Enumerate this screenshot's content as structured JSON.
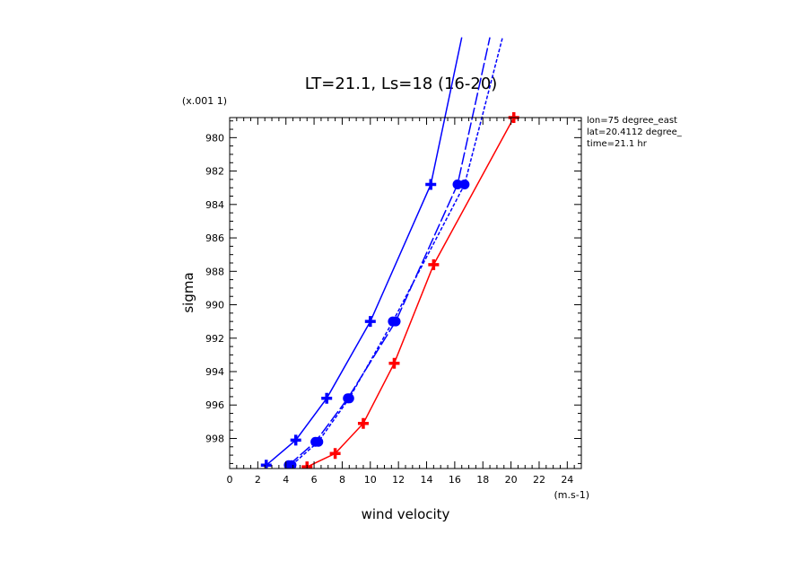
{
  "chart_data": {
    "type": "line",
    "title": "LT=21.1, Ls=18 (16-20)",
    "xlabel": "wind velocity",
    "ylabel": "sigma",
    "x_units": "(m.s-1)",
    "y_scale_label": "(x.001 1)",
    "xlim": [
      0,
      25
    ],
    "ylim": [
      999.8,
      978.8
    ],
    "x_ticks": [
      0,
      2,
      4,
      6,
      8,
      10,
      12,
      14,
      16,
      18,
      20,
      22,
      24
    ],
    "y_ticks": [
      980,
      982,
      984,
      986,
      988,
      990,
      992,
      994,
      996,
      998
    ],
    "grid": false,
    "series": [
      {
        "color": "#0000ff",
        "dash": "solid",
        "marker": "cross",
        "points": [
          [
            2.6,
            999.6
          ],
          [
            4.7,
            998.1
          ],
          [
            6.9,
            995.6
          ],
          [
            10.0,
            991.0
          ],
          [
            14.3,
            982.8
          ],
          [
            16.5,
            974.0
          ]
        ]
      },
      {
        "color": "#0000ff",
        "dash": "long-dash",
        "marker": "circle",
        "points": [
          [
            4.2,
            999.6
          ],
          [
            6.1,
            998.2
          ],
          [
            8.4,
            995.6
          ],
          [
            11.8,
            991.0
          ],
          [
            16.2,
            982.8
          ],
          [
            18.5,
            974.0
          ]
        ]
      },
      {
        "color": "#0000ff",
        "dash": "short-dash",
        "marker": "circle",
        "points": [
          [
            4.4,
            999.6
          ],
          [
            6.3,
            998.2
          ],
          [
            8.5,
            995.6
          ],
          [
            11.6,
            991.0
          ],
          [
            16.7,
            982.8
          ],
          [
            19.4,
            974.0
          ]
        ]
      },
      {
        "color": "#ff0000",
        "dash": "solid",
        "marker": "cross",
        "points": [
          [
            5.5,
            999.7
          ],
          [
            7.5,
            998.9
          ],
          [
            9.5,
            997.1
          ],
          [
            11.7,
            993.5
          ],
          [
            14.5,
            987.6
          ],
          [
            20.2,
            978.8
          ]
        ]
      }
    ]
  },
  "info": {
    "lon": "lon=75 degree_east",
    "lat": "lat=20.4112 degree_",
    "time": "time=21.1 hr"
  }
}
